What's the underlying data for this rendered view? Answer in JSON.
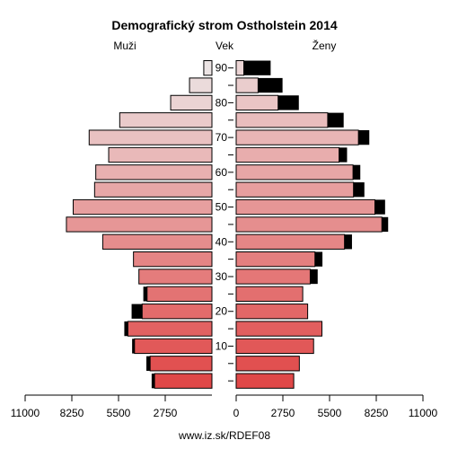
{
  "chart_data": {
    "type": "bar",
    "orientation": "horizontal-pyramid",
    "title": "Demografický strom Ostholstein 2014",
    "left_label": "Muži",
    "center_label": "Vek",
    "right_label": "Ženy",
    "source": "www.iz.sk/RDEF08",
    "x_ticks": [
      11000,
      8250,
      5500,
      2750,
      0,
      2750,
      5500,
      8250,
      11000
    ],
    "xlim": [
      0,
      11000
    ],
    "y_ticks": [
      10,
      20,
      30,
      40,
      50,
      60,
      70,
      80,
      90
    ],
    "age_groups": [
      0,
      5,
      10,
      15,
      20,
      25,
      30,
      35,
      40,
      45,
      50,
      55,
      60,
      65,
      70,
      75,
      80,
      85,
      90
    ],
    "series": [
      {
        "side": "left",
        "values": [
          3380,
          3640,
          4560,
          4950,
          4110,
          3820,
          4300,
          4620,
          6430,
          8570,
          8170,
          6910,
          6840,
          6080,
          7230,
          5430,
          2430,
          1320,
          480
        ],
        "excess": [
          170,
          220,
          140,
          210,
          620,
          220,
          0,
          0,
          0,
          0,
          0,
          0,
          0,
          0,
          0,
          0,
          0,
          0,
          0
        ]
      },
      {
        "side": "right",
        "values": [
          3390,
          3720,
          4560,
          5050,
          4210,
          3920,
          4360,
          4640,
          6380,
          8580,
          8170,
          6910,
          6880,
          6060,
          7200,
          5390,
          2470,
          1290,
          450
        ],
        "excess": [
          0,
          0,
          0,
          0,
          0,
          0,
          440,
          440,
          440,
          370,
          600,
          640,
          430,
          470,
          640,
          940,
          1220,
          1440,
          1580
        ]
      }
    ],
    "colors": {
      "excess": "#000000",
      "bar_stroke": "#000000",
      "gradient_bottom": "#e04848",
      "gradient_top": "#ece4e4"
    }
  }
}
